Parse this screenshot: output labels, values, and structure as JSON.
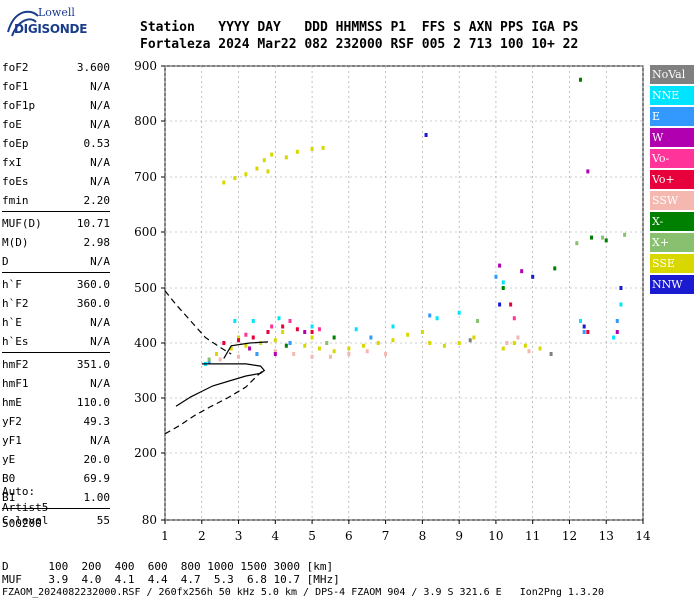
{
  "logo": {
    "top": "Lowell",
    "bottom": "DIGISONDE"
  },
  "header": {
    "labels": "Station   YYYY DAY   DDD HHMMSS P1  FFS S AXN PPS IGA PS",
    "values": "Fortaleza 2024 Mar22 082 232000 RSF 005 2 713 100 10+ 22"
  },
  "params": [
    {
      "k": "foF2",
      "v": "3.600"
    },
    {
      "k": "foF1",
      "v": "N/A"
    },
    {
      "k": "foF1p",
      "v": "N/A"
    },
    {
      "k": "foE",
      "v": "N/A"
    },
    {
      "k": "foEp",
      "v": "0.53"
    },
    {
      "k": "fxI",
      "v": "N/A"
    },
    {
      "k": "foEs",
      "v": "N/A"
    },
    {
      "k": "fmin",
      "v": "2.20"
    },
    {
      "k": "MUF(D)",
      "v": "10.71"
    },
    {
      "k": "M(D)",
      "v": "2.98"
    },
    {
      "k": "D",
      "v": "N/A"
    },
    {
      "k": "h`F",
      "v": "360.0"
    },
    {
      "k": "h`F2",
      "v": "360.0"
    },
    {
      "k": "h`E",
      "v": "N/A"
    },
    {
      "k": "h`Es",
      "v": "N/A"
    },
    {
      "k": "hmF2",
      "v": "351.0"
    },
    {
      "k": "hmF1",
      "v": "N/A"
    },
    {
      "k": "hmE",
      "v": "110.0"
    },
    {
      "k": "yF2",
      "v": "49.3"
    },
    {
      "k": "yF1",
      "v": "N/A"
    },
    {
      "k": "yE",
      "v": "20.0"
    },
    {
      "k": "B0",
      "v": "69.9"
    },
    {
      "k": "B1",
      "v": "1.00"
    },
    {
      "k": "C-level",
      "v": "55"
    }
  ],
  "auto": {
    "l1": "Auto:",
    "l2": "Artist5",
    "l3": "500200"
  },
  "footer": {
    "d_row": "D      100  200  400  600  800 1000 1500 3000 [km]",
    "muf_row": "MUF    3.9  4.0  4.1  4.4  4.7  5.3  6.8 10.7 [MHz]",
    "file_row": "FZAOM_2024082232000.RSF / 260fx256h 50 kHz 5.0 km / DPS-4 FZAOM 904 / 3.9 S 321.6 E   Ion2Png 1.3.20"
  },
  "legend": [
    {
      "label": "NoVal",
      "color": "#808080"
    },
    {
      "label": "NNE",
      "color": "#00e5ff"
    },
    {
      "label": "E",
      "color": "#3399ff"
    },
    {
      "label": "W",
      "color": "#b000b0"
    },
    {
      "label": "Vo-",
      "color": "#ff3399"
    },
    {
      "label": "Vo+",
      "color": "#e8003c"
    },
    {
      "label": "SSW",
      "color": "#f4b8b0"
    },
    {
      "label": "X-",
      "color": "#008000"
    },
    {
      "label": "X+",
      "color": "#88c070"
    },
    {
      "label": "SSE",
      "color": "#d8d800"
    },
    {
      "label": "NNW",
      "color": "#1a1ad0"
    }
  ],
  "chart_data": {
    "type": "scatter",
    "xlim": [
      1,
      14
    ],
    "ylim": [
      80,
      900
    ],
    "xticks": [
      "1",
      "2",
      "3",
      "4",
      "5",
      "6",
      "7",
      "8",
      "9",
      "10",
      "11",
      "12",
      "13",
      "14"
    ],
    "yticks": [
      "80",
      "200",
      "300",
      "400",
      "500",
      "600",
      "700",
      "800",
      "900"
    ],
    "grid": true,
    "series": [
      {
        "color": "#d8d800",
        "points": [
          [
            2.6,
            690
          ],
          [
            2.9,
            698
          ],
          [
            3.2,
            705
          ],
          [
            3.5,
            715
          ],
          [
            3.7,
            730
          ],
          [
            3.9,
            740
          ],
          [
            4.3,
            735
          ],
          [
            4.6,
            745
          ],
          [
            5.0,
            750
          ],
          [
            5.3,
            752
          ],
          [
            3.8,
            710
          ]
        ]
      },
      {
        "color": "#d8d800",
        "points": [
          [
            2.4,
            380
          ],
          [
            2.8,
            390
          ],
          [
            3.2,
            395
          ],
          [
            3.6,
            400
          ],
          [
            4.0,
            405
          ],
          [
            4.4,
            400
          ],
          [
            4.8,
            395
          ],
          [
            5.2,
            390
          ],
          [
            5.6,
            385
          ],
          [
            6.0,
            390
          ],
          [
            6.4,
            395
          ],
          [
            6.8,
            400
          ],
          [
            7.2,
            405
          ],
          [
            8.2,
            400
          ],
          [
            8.6,
            395
          ],
          [
            9.0,
            400
          ],
          [
            9.4,
            410
          ],
          [
            8.0,
            420
          ],
          [
            7.6,
            415
          ],
          [
            10.2,
            390
          ],
          [
            10.5,
            400
          ],
          [
            10.8,
            395
          ],
          [
            11.2,
            390
          ],
          [
            3.0,
            410
          ],
          [
            4.2,
            420
          ],
          [
            5.0,
            410
          ]
        ]
      },
      {
        "color": "#f4b8b0",
        "points": [
          [
            2.5,
            370
          ],
          [
            3.0,
            375
          ],
          [
            3.5,
            380
          ],
          [
            4.0,
            385
          ],
          [
            4.5,
            380
          ],
          [
            5.0,
            375
          ],
          [
            5.5,
            375
          ],
          [
            6.0,
            380
          ],
          [
            6.5,
            385
          ],
          [
            7.0,
            380
          ],
          [
            10.3,
            400
          ],
          [
            10.6,
            410
          ],
          [
            10.9,
            385
          ]
        ]
      },
      {
        "color": "#e8003c",
        "points": [
          [
            2.6,
            400
          ],
          [
            3.0,
            405
          ],
          [
            3.4,
            410
          ],
          [
            3.8,
            420
          ],
          [
            4.2,
            430
          ],
          [
            4.6,
            425
          ],
          [
            5.0,
            420
          ],
          [
            10.4,
            470
          ],
          [
            12.5,
            420
          ]
        ]
      },
      {
        "color": "#ff3399",
        "points": [
          [
            3.2,
            415
          ],
          [
            3.9,
            430
          ],
          [
            4.4,
            440
          ],
          [
            5.2,
            425
          ],
          [
            10.5,
            445
          ]
        ]
      },
      {
        "color": "#00e5ff",
        "points": [
          [
            2.1,
            362
          ],
          [
            2.9,
            440
          ],
          [
            3.4,
            440
          ],
          [
            4.1,
            445
          ],
          [
            5.0,
            430
          ],
          [
            6.2,
            425
          ],
          [
            7.2,
            430
          ],
          [
            8.4,
            445
          ],
          [
            9.0,
            455
          ],
          [
            10.2,
            510
          ],
          [
            12.3,
            440
          ],
          [
            13.2,
            410
          ],
          [
            13.4,
            470
          ]
        ]
      },
      {
        "color": "#3399ff",
        "points": [
          [
            2.2,
            365
          ],
          [
            3.5,
            380
          ],
          [
            4.4,
            400
          ],
          [
            6.6,
            410
          ],
          [
            8.2,
            450
          ],
          [
            10.0,
            520
          ],
          [
            12.4,
            420
          ],
          [
            13.3,
            440
          ]
        ]
      },
      {
        "color": "#b000b0",
        "points": [
          [
            3.3,
            390
          ],
          [
            4.0,
            380
          ],
          [
            4.8,
            420
          ],
          [
            10.1,
            540
          ],
          [
            10.7,
            530
          ],
          [
            12.5,
            710
          ],
          [
            13.3,
            420
          ]
        ]
      },
      {
        "color": "#008000",
        "points": [
          [
            4.3,
            395
          ],
          [
            5.6,
            410
          ],
          [
            10.2,
            500
          ],
          [
            11.6,
            535
          ],
          [
            12.3,
            875
          ],
          [
            12.6,
            590
          ],
          [
            13.0,
            585
          ]
        ]
      },
      {
        "color": "#88c070",
        "points": [
          [
            2.2,
            370
          ],
          [
            5.4,
            400
          ],
          [
            9.5,
            440
          ],
          [
            12.2,
            580
          ],
          [
            12.9,
            590
          ],
          [
            13.5,
            595
          ]
        ]
      },
      {
        "color": "#1a1ad0",
        "points": [
          [
            8.1,
            775
          ],
          [
            10.1,
            470
          ],
          [
            11.0,
            520
          ],
          [
            13.4,
            500
          ],
          [
            12.4,
            430
          ]
        ]
      },
      {
        "color": "#808080",
        "points": [
          [
            9.3,
            405
          ],
          [
            11.5,
            380
          ]
        ]
      }
    ],
    "profile_solid": [
      [
        2.0,
        362
      ],
      [
        3.2,
        362
      ],
      [
        3.6,
        358
      ],
      [
        3.7,
        350
      ],
      [
        3.6,
        345
      ],
      [
        3.2,
        340
      ],
      [
        2.7,
        330
      ],
      [
        2.3,
        322
      ],
      [
        2.0,
        312
      ],
      [
        1.7,
        302
      ],
      [
        1.3,
        285
      ]
    ],
    "profile_dashed_upper": [
      [
        1.0,
        495
      ],
      [
        1.3,
        470
      ],
      [
        1.7,
        440
      ],
      [
        2.1,
        410
      ],
      [
        2.5,
        392
      ],
      [
        2.8,
        380
      ]
    ],
    "profile_dashed_lower": [
      [
        1.0,
        235
      ],
      [
        1.4,
        250
      ],
      [
        1.8,
        268
      ],
      [
        2.2,
        283
      ],
      [
        2.7,
        300
      ],
      [
        3.2,
        320
      ],
      [
        3.5,
        340
      ],
      [
        3.7,
        352
      ]
    ],
    "trace_upper": [
      [
        2.6,
        372
      ],
      [
        2.8,
        395
      ],
      [
        3.3,
        400
      ],
      [
        3.8,
        402
      ]
    ]
  }
}
